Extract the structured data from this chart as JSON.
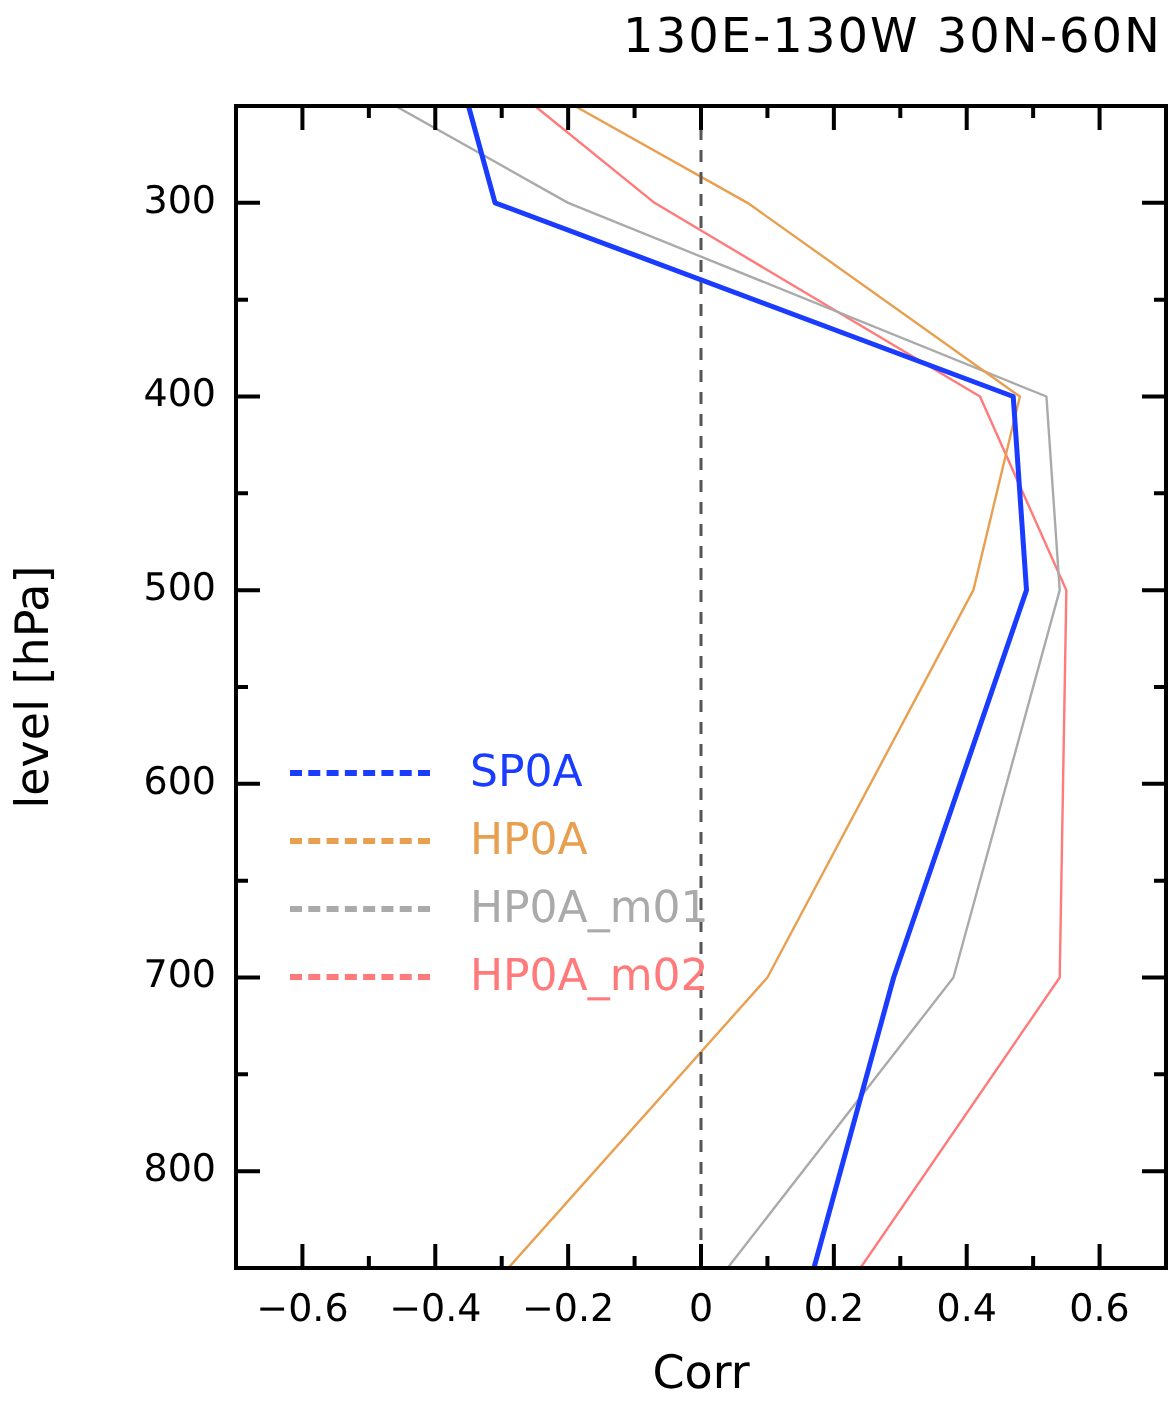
{
  "chart_data": {
    "type": "line",
    "orientation": "horizontal",
    "title": "130E-130W 30N-60N",
    "xlabel": "Corr",
    "ylabel": "level [hPa]",
    "x": [
      250,
      300,
      400,
      500,
      700,
      850
    ],
    "series": [
      {
        "name": "SP0A",
        "color": "#1a3cff",
        "values": [
          -0.35,
          -0.31,
          0.47,
          0.49,
          0.29,
          0.17
        ]
      },
      {
        "name": "HP0A",
        "color": "#e8a050",
        "values": [
          -0.19,
          0.07,
          0.48,
          0.41,
          0.1,
          -0.29
        ]
      },
      {
        "name": "HP0A_m01",
        "color": "#aaaaaa",
        "values": [
          -0.46,
          -0.2,
          0.52,
          0.54,
          0.38,
          0.04
        ]
      },
      {
        "name": "HP0A_m02",
        "color": "#ff7a7a",
        "values": [
          -0.25,
          -0.07,
          0.42,
          0.55,
          0.54,
          0.24
        ]
      }
    ],
    "xlim": [
      -0.7,
      0.7
    ],
    "xticks": [
      -0.6,
      {
        "value": -0.5,
        "label": null
      },
      -0.4,
      {
        "value": -0.3,
        "label": null
      },
      -0.2,
      {
        "value": -0.1,
        "label": null
      },
      0,
      {
        "value": 0.1,
        "label": null
      },
      0.2,
      {
        "value": 0.3,
        "label": null
      },
      0.4,
      {
        "value": 0.5,
        "label": null
      },
      0.6
    ],
    "ylim": [
      850,
      250
    ],
    "yticks": [
      {
        "value": 250,
        "label": null
      },
      300,
      {
        "value": 350,
        "label": null
      },
      400,
      {
        "value": 450,
        "label": null
      },
      500,
      {
        "value": 550,
        "label": null
      },
      600,
      {
        "value": 650,
        "label": null
      },
      700,
      {
        "value": 750,
        "label": null
      },
      800
    ],
    "ref_lines": [
      {
        "axis": "x",
        "value": 0,
        "color": "#555555",
        "line_style": "dashed"
      }
    ],
    "grid": false,
    "legend": "left",
    "marker": "none",
    "line_style": "solid"
  }
}
